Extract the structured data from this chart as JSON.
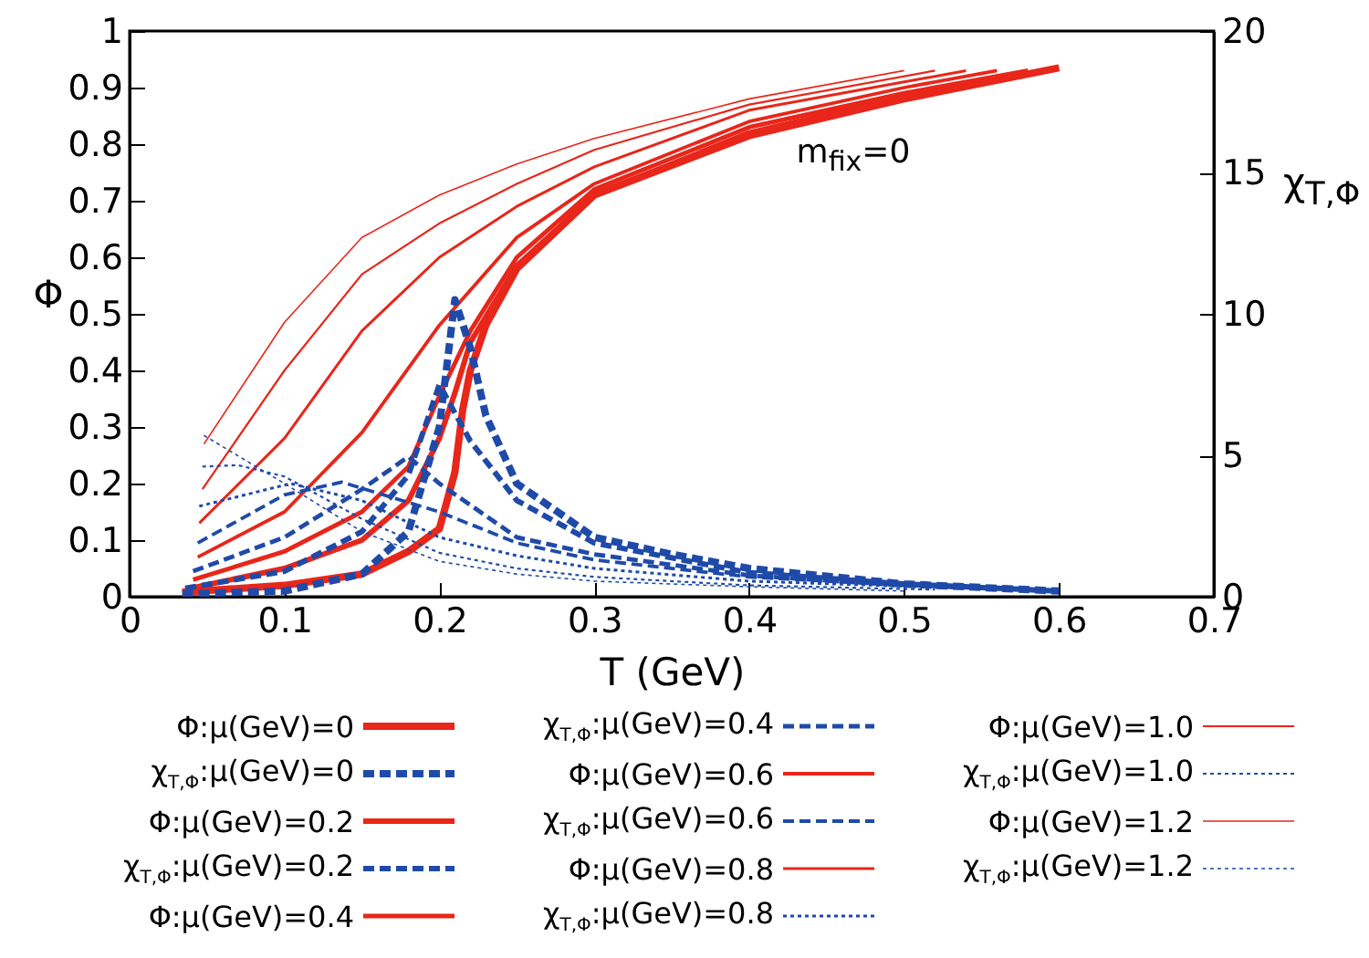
{
  "chart_data": {
    "type": "line",
    "xlabel": "T (GeV)",
    "ylabel": "Φ",
    "y2label": "χ$_{T,Φ}$",
    "annotations": [
      "m$_{fix}$=0"
    ],
    "xlim": [
      0,
      0.7
    ],
    "xticks": [
      0,
      0.1,
      0.2,
      0.3,
      0.4,
      0.5,
      0.6,
      0.7
    ],
    "ylim": [
      0,
      1
    ],
    "yticks": [
      0,
      0.1,
      0.2,
      0.3,
      0.4,
      0.5,
      0.6,
      0.7,
      0.8,
      0.9,
      1
    ],
    "y2lim": [
      0,
      20
    ],
    "y2ticks": [
      0,
      5,
      10,
      15,
      20
    ],
    "grid": false,
    "legend": "bottom",
    "marker": "none",
    "series": [
      {
        "name": "Φ:μ(GeV)=0",
        "color": "#e8261a",
        "line_style": "solid",
        "x": [
          0.034,
          0.1,
          0.15,
          0.18,
          0.2,
          0.21,
          0.215,
          0.22,
          0.23,
          0.25,
          0.3,
          0.4,
          0.5,
          0.6
        ],
        "values": [
          0.008,
          0.02,
          0.04,
          0.08,
          0.12,
          0.22,
          0.33,
          0.4,
          0.48,
          0.58,
          0.71,
          0.815,
          0.88,
          0.935
        ]
      },
      {
        "name": "χ$_{T,Φ}$:μ(GeV)=0",
        "color": "#1f4aa8",
        "line_style": "dashed",
        "axis": "y2",
        "x": [
          0.034,
          0.1,
          0.15,
          0.18,
          0.2,
          0.21,
          0.22,
          0.23,
          0.25,
          0.3,
          0.35,
          0.4,
          0.5,
          0.6
        ],
        "values": [
          0.1,
          0.2,
          0.8,
          2.3,
          6.0,
          10.5,
          8.8,
          6.4,
          4.0,
          2.1,
          1.5,
          1.0,
          0.45,
          0.2
        ]
      },
      {
        "name": "Φ:μ(GeV)=0.2",
        "color": "#e8261a",
        "line_style": "solid",
        "x": [
          0.036,
          0.1,
          0.15,
          0.18,
          0.2,
          0.21,
          0.22,
          0.25,
          0.3,
          0.4,
          0.5,
          0.6
        ],
        "values": [
          0.013,
          0.05,
          0.1,
          0.17,
          0.28,
          0.36,
          0.45,
          0.585,
          0.71,
          0.82,
          0.885,
          0.935
        ]
      },
      {
        "name": "χ$_{T,Φ}$:μ(GeV)=0.2",
        "color": "#1f4aa8",
        "line_style": "dashed",
        "axis": "y2",
        "x": [
          0.036,
          0.1,
          0.15,
          0.18,
          0.2,
          0.22,
          0.25,
          0.3,
          0.4,
          0.5,
          0.6
        ],
        "values": [
          0.3,
          0.9,
          2.3,
          4.3,
          7.5,
          5.5,
          3.4,
          1.9,
          0.85,
          0.45,
          0.2
        ]
      },
      {
        "name": "Φ:μ(GeV)=0.4",
        "color": "#e8261a",
        "line_style": "solid",
        "x": [
          0.041,
          0.1,
          0.15,
          0.18,
          0.2,
          0.22,
          0.25,
          0.3,
          0.4,
          0.5,
          0.58
        ],
        "values": [
          0.03,
          0.08,
          0.15,
          0.23,
          0.355,
          0.47,
          0.6,
          0.72,
          0.83,
          0.89,
          0.93
        ]
      },
      {
        "name": "χ$_{T,Φ}$:μ(GeV)=0.4",
        "color": "#1f4aa8",
        "line_style": "dashed",
        "axis": "y2",
        "x": [
          0.041,
          0.1,
          0.15,
          0.18,
          0.2,
          0.25,
          0.3,
          0.4,
          0.5,
          0.58
        ],
        "values": [
          0.9,
          2.1,
          3.8,
          4.95,
          4.0,
          2.1,
          1.5,
          0.75,
          0.4,
          0.25
        ]
      },
      {
        "name": "Φ:μ(GeV)=0.6",
        "color": "#e8261a",
        "line_style": "solid",
        "x": [
          0.044,
          0.1,
          0.15,
          0.2,
          0.25,
          0.3,
          0.4,
          0.5,
          0.56
        ],
        "values": [
          0.07,
          0.15,
          0.29,
          0.48,
          0.635,
          0.73,
          0.84,
          0.9,
          0.93
        ]
      },
      {
        "name": "χ$_{T,Φ}$:μ(GeV)=0.6",
        "color": "#1f4aa8",
        "line_style": "dashed",
        "axis": "y2",
        "x": [
          0.044,
          0.1,
          0.137,
          0.2,
          0.25,
          0.3,
          0.4,
          0.5,
          0.56
        ],
        "values": [
          1.9,
          3.6,
          4.05,
          3.0,
          1.9,
          1.3,
          0.7,
          0.4,
          0.3
        ]
      },
      {
        "name": "Φ:μ(GeV)=0.8",
        "color": "#e8261a",
        "line_style": "solid",
        "x": [
          0.045,
          0.1,
          0.15,
          0.2,
          0.25,
          0.3,
          0.4,
          0.5,
          0.54
        ],
        "values": [
          0.13,
          0.28,
          0.47,
          0.6,
          0.69,
          0.76,
          0.86,
          0.91,
          0.93
        ]
      },
      {
        "name": "χ$_{T,Φ}$:μ(GeV)=0.8",
        "color": "#1f4aa8",
        "line_style": "dotted",
        "axis": "y2",
        "x": [
          0.045,
          0.104,
          0.15,
          0.2,
          0.25,
          0.3,
          0.4,
          0.54
        ],
        "values": [
          3.2,
          4.0,
          3.4,
          2.1,
          1.45,
          1.0,
          0.55,
          0.3
        ]
      },
      {
        "name": "Φ:μ(GeV)=1.0",
        "color": "#e8261a",
        "line_style": "solid",
        "x": [
          0.047,
          0.1,
          0.15,
          0.2,
          0.25,
          0.3,
          0.4,
          0.52
        ],
        "values": [
          0.19,
          0.4,
          0.57,
          0.66,
          0.73,
          0.79,
          0.87,
          0.93
        ]
      },
      {
        "name": "χ$_{T,Φ}$:μ(GeV)=1.0",
        "color": "#1f4aa8",
        "line_style": "dotted",
        "axis": "y2",
        "x": [
          0.047,
          0.07,
          0.1,
          0.15,
          0.2,
          0.25,
          0.3,
          0.4,
          0.52
        ],
        "values": [
          4.6,
          4.65,
          4.25,
          2.75,
          1.55,
          1.0,
          0.7,
          0.4,
          0.25
        ]
      },
      {
        "name": "Φ:μ(GeV)=1.2",
        "color": "#e8261a",
        "line_style": "solid",
        "x": [
          0.048,
          0.1,
          0.15,
          0.2,
          0.25,
          0.3,
          0.4,
          0.5
        ],
        "values": [
          0.27,
          0.485,
          0.635,
          0.71,
          0.765,
          0.81,
          0.88,
          0.93
        ]
      },
      {
        "name": "χ$_{T,Φ}$:μ(GeV)=1.2",
        "color": "#1f4aa8",
        "line_style": "dotted",
        "axis": "y2",
        "x": [
          0.048,
          0.1,
          0.15,
          0.2,
          0.25,
          0.3,
          0.4,
          0.5
        ],
        "values": [
          5.7,
          4.0,
          2.3,
          1.25,
          0.8,
          0.55,
          0.35,
          0.2
        ]
      }
    ]
  }
}
